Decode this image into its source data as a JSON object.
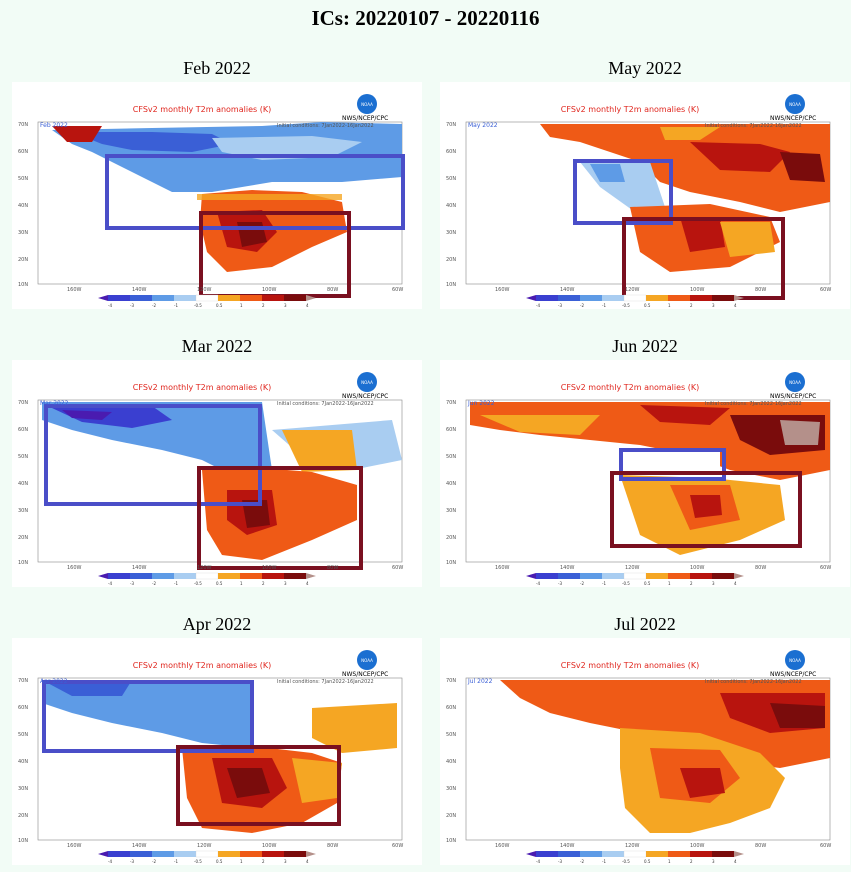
{
  "title": "ICs: 20220107 - 20220116",
  "colors": {
    "blue_box": "#4a4ec8",
    "red_box": "#7a1020",
    "warm_light": "#f5a623",
    "warm": "#ef5a16",
    "warm_dark": "#b8140e",
    "hot": "#7a0c0c",
    "cool_light": "#a9cdf1",
    "cool": "#5e9be6",
    "cool_dark": "#3a5fd6",
    "cold": "#4a1bb0"
  },
  "panels": [
    {
      "month": "Feb 2022",
      "map_title": "CFSv2 monthly T2m anomalies (K)",
      "agency": "NWS/NCEP/CPC",
      "inset": "Feb 2022",
      "ic_text": "Initial conditions: 7Jan2022-16Jan2022"
    },
    {
      "month": "May 2022",
      "map_title": "CFSv2 monthly T2m anomalies (K)",
      "agency": "NWS/NCEP/CPC",
      "inset": "May 2022",
      "ic_text": "Initial conditions: 7Jan2022-16Jan2022"
    },
    {
      "month": "Mar 2022",
      "map_title": "CFSv2 monthly T2m anomalies (K)",
      "agency": "NWS/NCEP/CPC",
      "inset": "Mar 2022",
      "ic_text": "Initial conditions: 7Jan2022-16Jan2022"
    },
    {
      "month": "Jun 2022",
      "map_title": "CFSv2 monthly T2m anomalies (K)",
      "agency": "NWS/NCEP/CPC",
      "inset": "Jun 2022",
      "ic_text": "Initial conditions: 7Jan2022-16Jan2022"
    },
    {
      "month": "Apr 2022",
      "map_title": "CFSv2 monthly T2m anomalies (K)",
      "agency": "NWS/NCEP/CPC",
      "inset": "Apr 2022",
      "ic_text": "Initial conditions: 7Jan2022-16Jan2022"
    },
    {
      "month": "Jul 2022",
      "map_title": "CFSv2 monthly T2m anomalies (K)",
      "agency": "NWS/NCEP/CPC",
      "inset": "Jul 2022",
      "ic_text": "Initial conditions: 7Jan2022-16Jan2022"
    }
  ],
  "lat_labels": [
    "70N",
    "60N",
    "50N",
    "40N",
    "30N",
    "20N",
    "10N"
  ],
  "lon_labels": [
    "160W",
    "140W",
    "120W",
    "100W",
    "80W",
    "60W"
  ],
  "colorbar_labels": [
    "-4",
    "-3",
    "-2",
    "-1",
    "-0.5",
    "0.5",
    "1",
    "2",
    "3",
    "4"
  ],
  "logo_text": "NOAA"
}
